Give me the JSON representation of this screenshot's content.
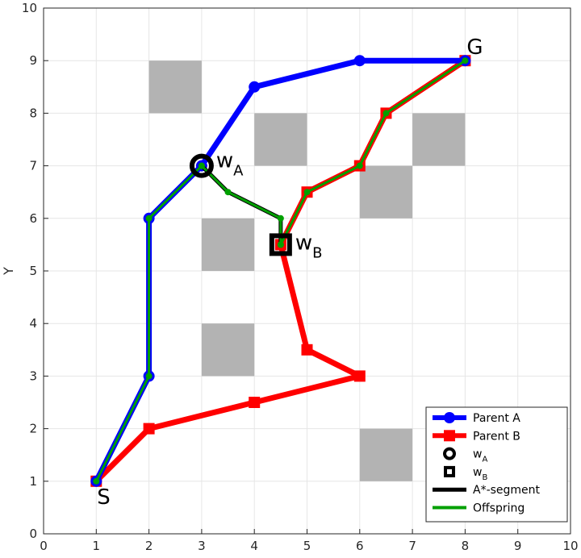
{
  "chart_data": {
    "type": "line",
    "xlim": [
      0,
      10
    ],
    "ylim": [
      0,
      10
    ],
    "xticks": [
      "0",
      "1",
      "2",
      "3",
      "4",
      "5",
      "6",
      "7",
      "8",
      "9",
      "10"
    ],
    "yticks": [
      "0",
      "1",
      "2",
      "3",
      "4",
      "5",
      "6",
      "7",
      "8",
      "9",
      "10"
    ],
    "ylabel": "Y",
    "xlabel": "",
    "grid": true,
    "legend_position": "bottom-right",
    "obstacles": [
      {
        "x0": 2,
        "y0": 8,
        "x1": 3,
        "y1": 9
      },
      {
        "x0": 4,
        "y0": 7,
        "x1": 5,
        "y1": 8
      },
      {
        "x0": 7,
        "y0": 7,
        "x1": 8,
        "y1": 8
      },
      {
        "x0": 6,
        "y0": 6,
        "x1": 7,
        "y1": 7
      },
      {
        "x0": 3,
        "y0": 5,
        "x1": 4,
        "y1": 6
      },
      {
        "x0": 3,
        "y0": 3,
        "x1": 4,
        "y1": 4
      },
      {
        "x0": 6,
        "y0": 1,
        "x1": 7,
        "y1": 2
      }
    ],
    "obstacle_color": "#b3b3b3",
    "series": [
      {
        "name": "Parent A",
        "color": "#0000ff",
        "marker": "circle",
        "x": [
          1,
          2,
          2,
          3,
          4,
          6,
          8
        ],
        "y": [
          1,
          3,
          6,
          7,
          8.5,
          9,
          9
        ]
      },
      {
        "name": "Parent B",
        "color": "#ff0000",
        "marker": "square",
        "x": [
          1,
          2,
          4,
          6,
          5,
          4.5,
          5,
          6,
          6.5,
          8
        ],
        "y": [
          1,
          2,
          2.5,
          3,
          3.5,
          5.5,
          6.5,
          7,
          8,
          9
        ]
      },
      {
        "name": "A*-segment",
        "color": "#000000",
        "marker": "none",
        "x": [
          3,
          3.5,
          4.5,
          4.5
        ],
        "y": [
          7,
          6.5,
          6,
          5.5
        ]
      },
      {
        "name": "Offspring",
        "color": "#00a000",
        "marker": "small-dot",
        "x": [
          1,
          2,
          2,
          3,
          3.5,
          4.5,
          4.5,
          5,
          6,
          6.5,
          8
        ],
        "y": [
          1,
          3,
          6,
          7,
          6.5,
          6,
          5.5,
          6.5,
          7,
          8,
          9
        ]
      }
    ],
    "waypoints": [
      {
        "name": "wA",
        "base": "w",
        "sub": "A",
        "marker": "circle",
        "x": 3,
        "y": 7
      },
      {
        "name": "wB",
        "base": "w",
        "sub": "B",
        "marker": "square",
        "x": 4.5,
        "y": 5.5
      }
    ],
    "annotations": [
      {
        "text": "S",
        "x": 1,
        "y": 1
      },
      {
        "text": "G",
        "x": 8,
        "y": 9
      }
    ],
    "legend": [
      {
        "label": "Parent A",
        "sub": "",
        "style": "blue-circle-line"
      },
      {
        "label": "Parent B",
        "sub": "",
        "style": "red-square-line"
      },
      {
        "label": "w",
        "sub": "A",
        "style": "black-circle"
      },
      {
        "label": "w",
        "sub": "B",
        "style": "black-square"
      },
      {
        "label": "A*-segment",
        "sub": "",
        "style": "black-line"
      },
      {
        "label": "Offspring",
        "sub": "",
        "style": "green-line"
      }
    ]
  }
}
